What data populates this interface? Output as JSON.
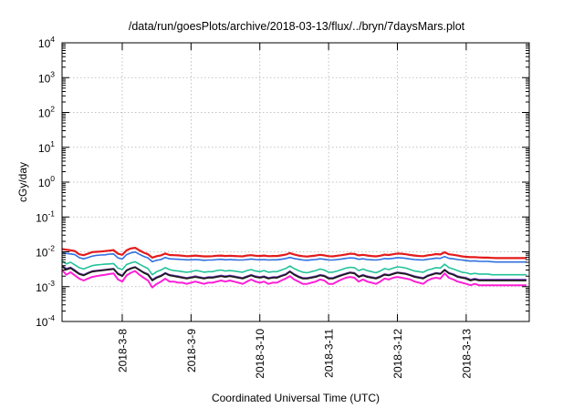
{
  "chart_data": {
    "type": "line",
    "title": "/data/run/goesPlots/archive/2018-03-13/flux/../bryn/7daysMars.plot",
    "xlabel": "Coordinated Universal Time (UTC)",
    "ylabel": "cGy/day",
    "y_scale": "log",
    "ylim": [
      0.0001,
      10000
    ],
    "y_ticks": [
      {
        "base": "10",
        "exp": "-4"
      },
      {
        "base": "10",
        "exp": "-3"
      },
      {
        "base": "10",
        "exp": "-2"
      },
      {
        "base": "10",
        "exp": "-1"
      },
      {
        "base": "10",
        "exp": "0"
      },
      {
        "base": "10",
        "exp": "1"
      },
      {
        "base": "10",
        "exp": "2"
      },
      {
        "base": "10",
        "exp": "3"
      },
      {
        "base": "10",
        "exp": "4"
      }
    ],
    "x_ticks": [
      "2018-3-8",
      "2018-3-9",
      "2018-3-10",
      "2018-3-11",
      "2018-3-12",
      "2018-3-13"
    ],
    "xlim": [
      "2018-03-07T03:00Z",
      "2018-03-13T22:00Z"
    ],
    "x_tick_dates": [
      "2018-03-08T00:00Z",
      "2018-03-09T00:00Z",
      "2018-03-10T00:00Z",
      "2018-03-11T00:00Z",
      "2018-03-12T00:00Z",
      "2018-03-13T00:00Z"
    ],
    "grid": true,
    "legend": "none",
    "sample_interval_hours": 1.5,
    "x_start": "2018-03-07T03:00Z",
    "series": [
      {
        "color": "#e41a1c",
        "line_width": 2.2,
        "values": [
          0.012,
          0.0115,
          0.011,
          0.0105,
          0.0085,
          0.008,
          0.0088,
          0.0098,
          0.01,
          0.0102,
          0.0105,
          0.0108,
          0.0112,
          0.0088,
          0.0082,
          0.011,
          0.0125,
          0.013,
          0.011,
          0.0095,
          0.0085,
          0.0068,
          0.0075,
          0.0079,
          0.0089,
          0.0081,
          0.008,
          0.0079,
          0.0077,
          0.0075,
          0.0076,
          0.0078,
          0.0076,
          0.0074,
          0.0074,
          0.0075,
          0.0077,
          0.0078,
          0.0076,
          0.0077,
          0.0076,
          0.0075,
          0.0074,
          0.0078,
          0.008,
          0.0077,
          0.0076,
          0.0078,
          0.0075,
          0.0076,
          0.0076,
          0.0079,
          0.0083,
          0.0092,
          0.0084,
          0.0078,
          0.0075,
          0.0073,
          0.0076,
          0.0078,
          0.0082,
          0.0079,
          0.0075,
          0.0074,
          0.0077,
          0.008,
          0.0084,
          0.0088,
          0.0087,
          0.0079,
          0.0082,
          0.0078,
          0.0076,
          0.0074,
          0.0077,
          0.0083,
          0.0081,
          0.0085,
          0.0089,
          0.0088,
          0.0085,
          0.0081,
          0.0078,
          0.0076,
          0.0075,
          0.0079,
          0.0082,
          0.0086,
          0.0084,
          0.0097,
          0.0085,
          0.0082,
          0.0078,
          0.0074,
          0.0072,
          0.007,
          0.007,
          0.0069,
          0.0068,
          0.0068,
          0.0067,
          0.0066,
          0.0066,
          0.0066,
          0.0066,
          0.0066,
          0.0066,
          0.0066,
          0.0066,
          0.0066,
          0.0066,
          0.0066
        ]
      },
      {
        "color": "#2f6fe0",
        "line_width": 1.6,
        "values": [
          0.0095,
          0.009,
          0.0087,
          0.0083,
          0.0068,
          0.0063,
          0.0068,
          0.0075,
          0.0079,
          0.0081,
          0.0082,
          0.0086,
          0.0087,
          0.0067,
          0.0062,
          0.0083,
          0.0093,
          0.0099,
          0.0085,
          0.0074,
          0.0067,
          0.0052,
          0.0057,
          0.006,
          0.0069,
          0.0063,
          0.0062,
          0.0061,
          0.006,
          0.0059,
          0.0059,
          0.006,
          0.0059,
          0.0057,
          0.0058,
          0.0058,
          0.006,
          0.0061,
          0.0059,
          0.006,
          0.0059,
          0.0058,
          0.0058,
          0.006,
          0.0062,
          0.006,
          0.0059,
          0.006,
          0.0058,
          0.0059,
          0.0059,
          0.0061,
          0.0064,
          0.0069,
          0.0064,
          0.0061,
          0.0058,
          0.0057,
          0.0059,
          0.006,
          0.0063,
          0.0061,
          0.0058,
          0.0058,
          0.006,
          0.0062,
          0.0065,
          0.0067,
          0.0066,
          0.0061,
          0.0063,
          0.006,
          0.0059,
          0.0058,
          0.006,
          0.0064,
          0.0063,
          0.0065,
          0.0068,
          0.0067,
          0.0065,
          0.0062,
          0.006,
          0.0059,
          0.0058,
          0.0061,
          0.0063,
          0.0066,
          0.0065,
          0.0073,
          0.0065,
          0.0063,
          0.006,
          0.0058,
          0.0056,
          0.0054,
          0.0055,
          0.0053,
          0.0053,
          0.0053,
          0.0052,
          0.0051,
          0.0051,
          0.0051,
          0.0051,
          0.0051,
          0.0051,
          0.0051,
          0.0051,
          0.0051,
          0.0051,
          0.0051
        ]
      },
      {
        "color": "#22c29a",
        "line_width": 1.6,
        "values": [
          0.0055,
          0.0045,
          0.005,
          0.0042,
          0.0035,
          0.0032,
          0.0036,
          0.004,
          0.0042,
          0.0043,
          0.0044,
          0.0045,
          0.0046,
          0.0034,
          0.0031,
          0.0043,
          0.0048,
          0.0052,
          0.0044,
          0.0038,
          0.0033,
          0.0022,
          0.0027,
          0.003,
          0.0035,
          0.0031,
          0.0029,
          0.0028,
          0.0027,
          0.0026,
          0.0027,
          0.0029,
          0.0028,
          0.0026,
          0.0027,
          0.0027,
          0.0029,
          0.003,
          0.0028,
          0.0029,
          0.0028,
          0.0027,
          0.0026,
          0.0029,
          0.0031,
          0.0028,
          0.0027,
          0.0029,
          0.0026,
          0.0027,
          0.0027,
          0.003,
          0.0033,
          0.0039,
          0.0033,
          0.0029,
          0.0026,
          0.0025,
          0.0027,
          0.0029,
          0.0032,
          0.003,
          0.0026,
          0.0026,
          0.0028,
          0.0031,
          0.0034,
          0.0036,
          0.0035,
          0.0029,
          0.0032,
          0.0029,
          0.0027,
          0.0025,
          0.0028,
          0.0033,
          0.0031,
          0.0034,
          0.0037,
          0.0036,
          0.0034,
          0.0031,
          0.0028,
          0.0027,
          0.0026,
          0.003,
          0.0032,
          0.0035,
          0.0034,
          0.0044,
          0.0035,
          0.0032,
          0.0029,
          0.0026,
          0.0025,
          0.0023,
          0.0024,
          0.0023,
          0.0023,
          0.0023,
          0.0022,
          0.0022,
          0.0022,
          0.0022,
          0.0022,
          0.0022,
          0.0022,
          0.0022,
          0.0022,
          0.0022,
          0.0022,
          0.0022
        ]
      },
      {
        "color": "#7b3fc4",
        "line_width": 1.6,
        "values": [
          0.004,
          0.0033,
          0.0036,
          0.003,
          0.0024,
          0.0022,
          0.0025,
          0.0028,
          0.0029,
          0.003,
          0.0031,
          0.0032,
          0.0033,
          0.0024,
          0.0021,
          0.003,
          0.0034,
          0.0037,
          0.0031,
          0.0026,
          0.0023,
          0.0016,
          0.0019,
          0.0021,
          0.0025,
          0.0022,
          0.0021,
          0.002,
          0.0019,
          0.0018,
          0.0019,
          0.002,
          0.0019,
          0.0018,
          0.0019,
          0.0019,
          0.002,
          0.0021,
          0.002,
          0.0021,
          0.002,
          0.0019,
          0.0018,
          0.002,
          0.0022,
          0.002,
          0.0019,
          0.002,
          0.0018,
          0.0019,
          0.0019,
          0.0021,
          0.0023,
          0.0028,
          0.0023,
          0.002,
          0.0018,
          0.0018,
          0.0019,
          0.002,
          0.0022,
          0.0021,
          0.0018,
          0.0018,
          0.002,
          0.0022,
          0.0024,
          0.0026,
          0.0025,
          0.002,
          0.0022,
          0.002,
          0.0019,
          0.0018,
          0.002,
          0.0023,
          0.0022,
          0.0024,
          0.0026,
          0.0025,
          0.0024,
          0.0022,
          0.002,
          0.0019,
          0.0018,
          0.0021,
          0.0023,
          0.0025,
          0.0024,
          0.0031,
          0.0025,
          0.0023,
          0.002,
          0.0019,
          0.0018,
          0.0016,
          0.0017,
          0.0016,
          0.0016,
          0.0016,
          0.0016,
          0.0016,
          0.0016,
          0.0016,
          0.0016,
          0.0016,
          0.0016,
          0.0016,
          0.0016,
          0.0016,
          0.0016,
          0.0016
        ]
      },
      {
        "color": "#1a1a1a",
        "line_width": 1.8,
        "values": [
          0.0038,
          0.0031,
          0.0034,
          0.0028,
          0.0023,
          0.0021,
          0.0024,
          0.0027,
          0.0028,
          0.0029,
          0.003,
          0.0031,
          0.0032,
          0.0023,
          0.002,
          0.0029,
          0.0033,
          0.0036,
          0.003,
          0.0025,
          0.0022,
          0.0015,
          0.0018,
          0.002,
          0.0024,
          0.0021,
          0.002,
          0.0019,
          0.0018,
          0.0017,
          0.0018,
          0.0019,
          0.0018,
          0.0017,
          0.0018,
          0.0018,
          0.0019,
          0.002,
          0.0019,
          0.002,
          0.0019,
          0.0018,
          0.0017,
          0.0019,
          0.0021,
          0.0019,
          0.0018,
          0.0019,
          0.0017,
          0.0018,
          0.0018,
          0.002,
          0.0022,
          0.0027,
          0.0022,
          0.0019,
          0.0017,
          0.0017,
          0.0018,
          0.0019,
          0.0021,
          0.002,
          0.0017,
          0.0017,
          0.0019,
          0.0021,
          0.0023,
          0.0025,
          0.0024,
          0.0019,
          0.0021,
          0.0019,
          0.0018,
          0.0017,
          0.0019,
          0.0022,
          0.0021,
          0.0023,
          0.0025,
          0.0024,
          0.0023,
          0.0021,
          0.0019,
          0.0018,
          0.0017,
          0.002,
          0.0022,
          0.0024,
          0.0023,
          0.003,
          0.0024,
          0.0022,
          0.0019,
          0.0018,
          0.0017,
          0.0015,
          0.0016,
          0.0015,
          0.0015,
          0.0015,
          0.0015,
          0.0015,
          0.0015,
          0.0015,
          0.0015,
          0.0015,
          0.0015,
          0.0015,
          0.0015,
          0.0015,
          0.0015,
          0.0015
        ]
      },
      {
        "color": "#ff1fd6",
        "line_width": 2.0,
        "values": [
          0.003,
          0.0022,
          0.0026,
          0.0021,
          0.0017,
          0.0015,
          0.0017,
          0.0019,
          0.002,
          0.0021,
          0.0022,
          0.0023,
          0.0024,
          0.0016,
          0.0014,
          0.0021,
          0.0025,
          0.0028,
          0.0022,
          0.0018,
          0.0015,
          0.00095,
          0.0012,
          0.0014,
          0.0017,
          0.0014,
          0.0014,
          0.0013,
          0.0013,
          0.0012,
          0.0013,
          0.0014,
          0.0013,
          0.0012,
          0.0013,
          0.0013,
          0.0014,
          0.0015,
          0.0014,
          0.0015,
          0.0014,
          0.0013,
          0.0012,
          0.0014,
          0.0016,
          0.0014,
          0.0013,
          0.0014,
          0.0012,
          0.0013,
          0.0013,
          0.0015,
          0.0017,
          0.002,
          0.0016,
          0.0014,
          0.0012,
          0.0012,
          0.0013,
          0.0014,
          0.0016,
          0.0015,
          0.0012,
          0.0012,
          0.0014,
          0.0016,
          0.0018,
          0.0019,
          0.0018,
          0.0014,
          0.0016,
          0.0014,
          0.0013,
          0.0012,
          0.0014,
          0.0017,
          0.0016,
          0.0018,
          0.0019,
          0.0018,
          0.0017,
          0.0016,
          0.0014,
          0.0013,
          0.0012,
          0.0015,
          0.0017,
          0.0018,
          0.0017,
          0.0024,
          0.0018,
          0.0016,
          0.0014,
          0.0013,
          0.0012,
          0.0011,
          0.0012,
          0.0011,
          0.0011,
          0.0011,
          0.0011,
          0.0011,
          0.0011,
          0.0011,
          0.0011,
          0.0011,
          0.0011,
          0.0011,
          0.0011,
          0.0011,
          0.0011,
          0.0011
        ]
      }
    ]
  }
}
